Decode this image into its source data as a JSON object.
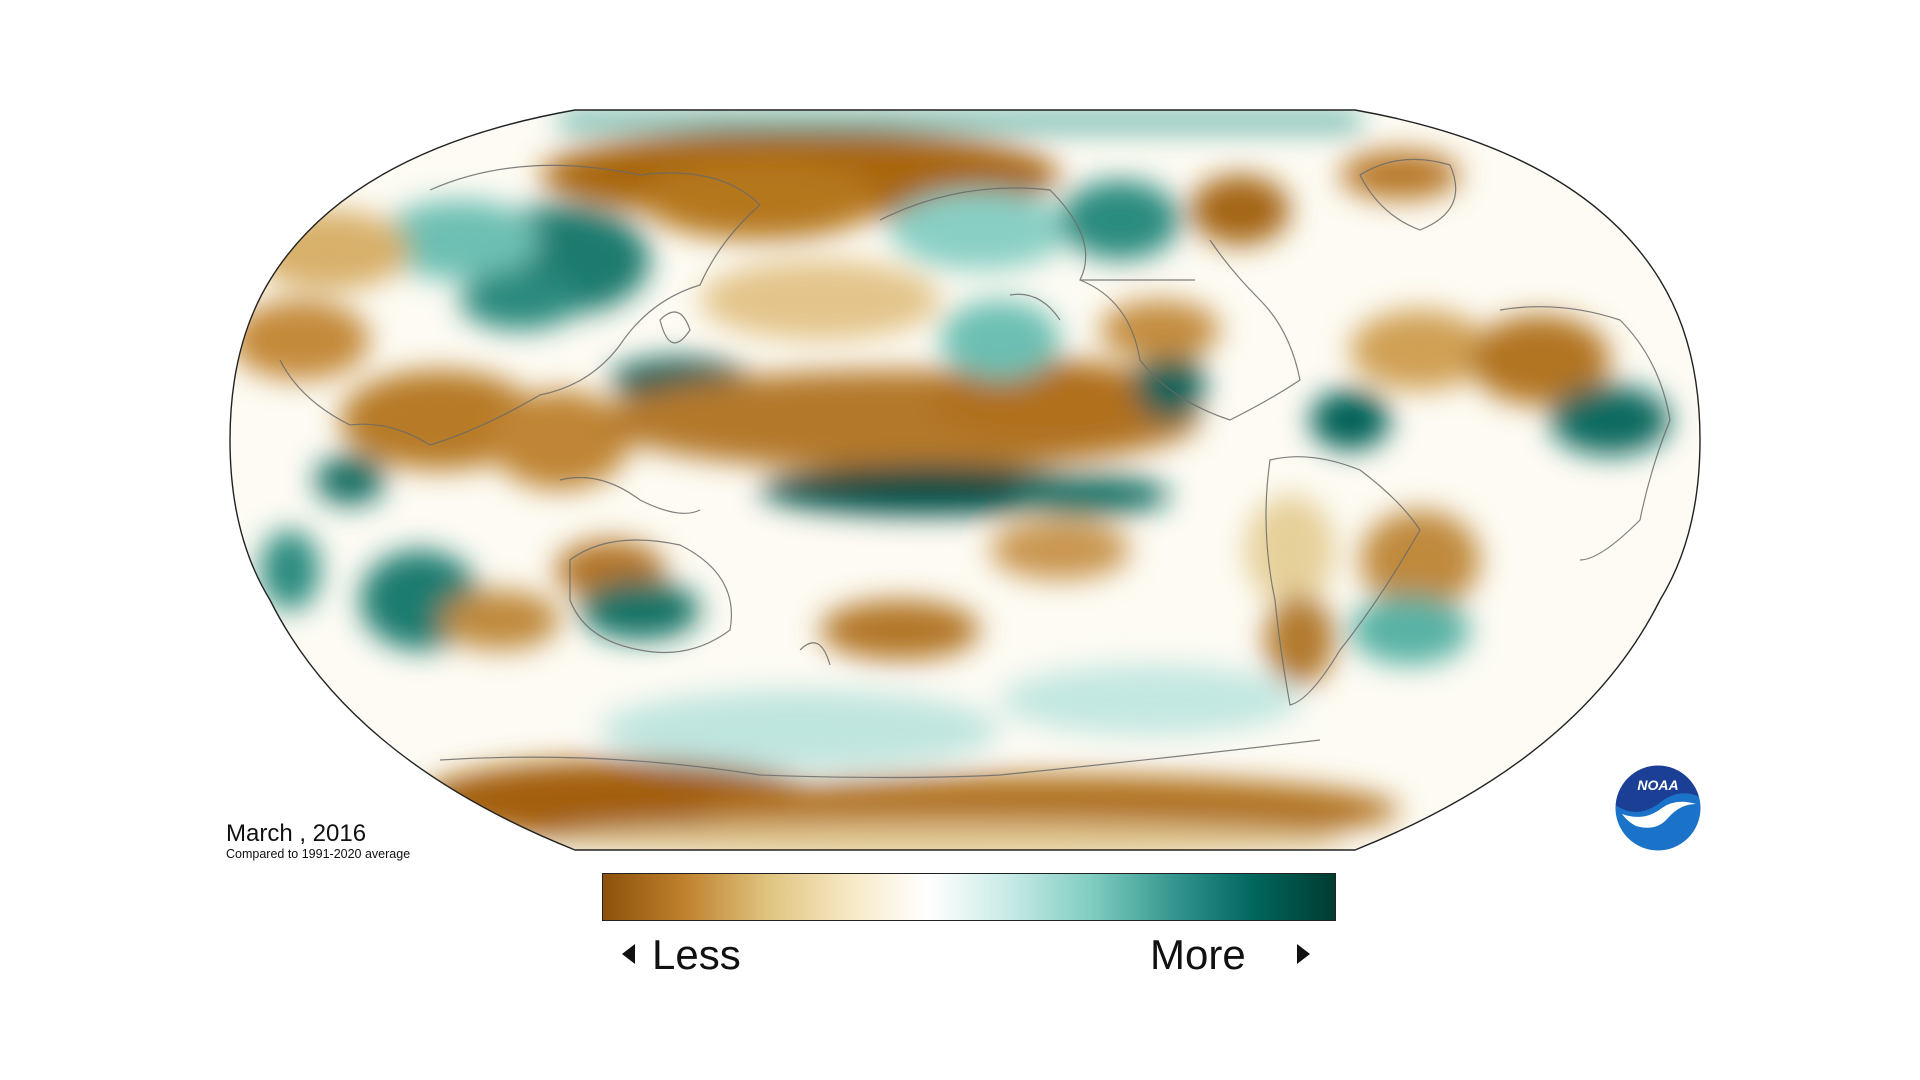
{
  "map": {
    "projection": "Robinson (Pacific-centered)",
    "variable": "precipitation anomaly",
    "date_label": "March , 2016",
    "comparison_label": "Compared to 1991-2020 average"
  },
  "legend": {
    "less_label": "Less",
    "more_label": "More",
    "colors": [
      "#8c510a",
      "#bf812d",
      "#dfc27d",
      "#f6e8c3",
      "#ffffff",
      "#c7eae5",
      "#80cdc1",
      "#35978f",
      "#01665e",
      "#003c30"
    ]
  },
  "logo": {
    "text": "NOAA",
    "colors": {
      "top": "#1b3f94",
      "bottom": "#1a73c9",
      "bird": "#ffffff"
    }
  }
}
